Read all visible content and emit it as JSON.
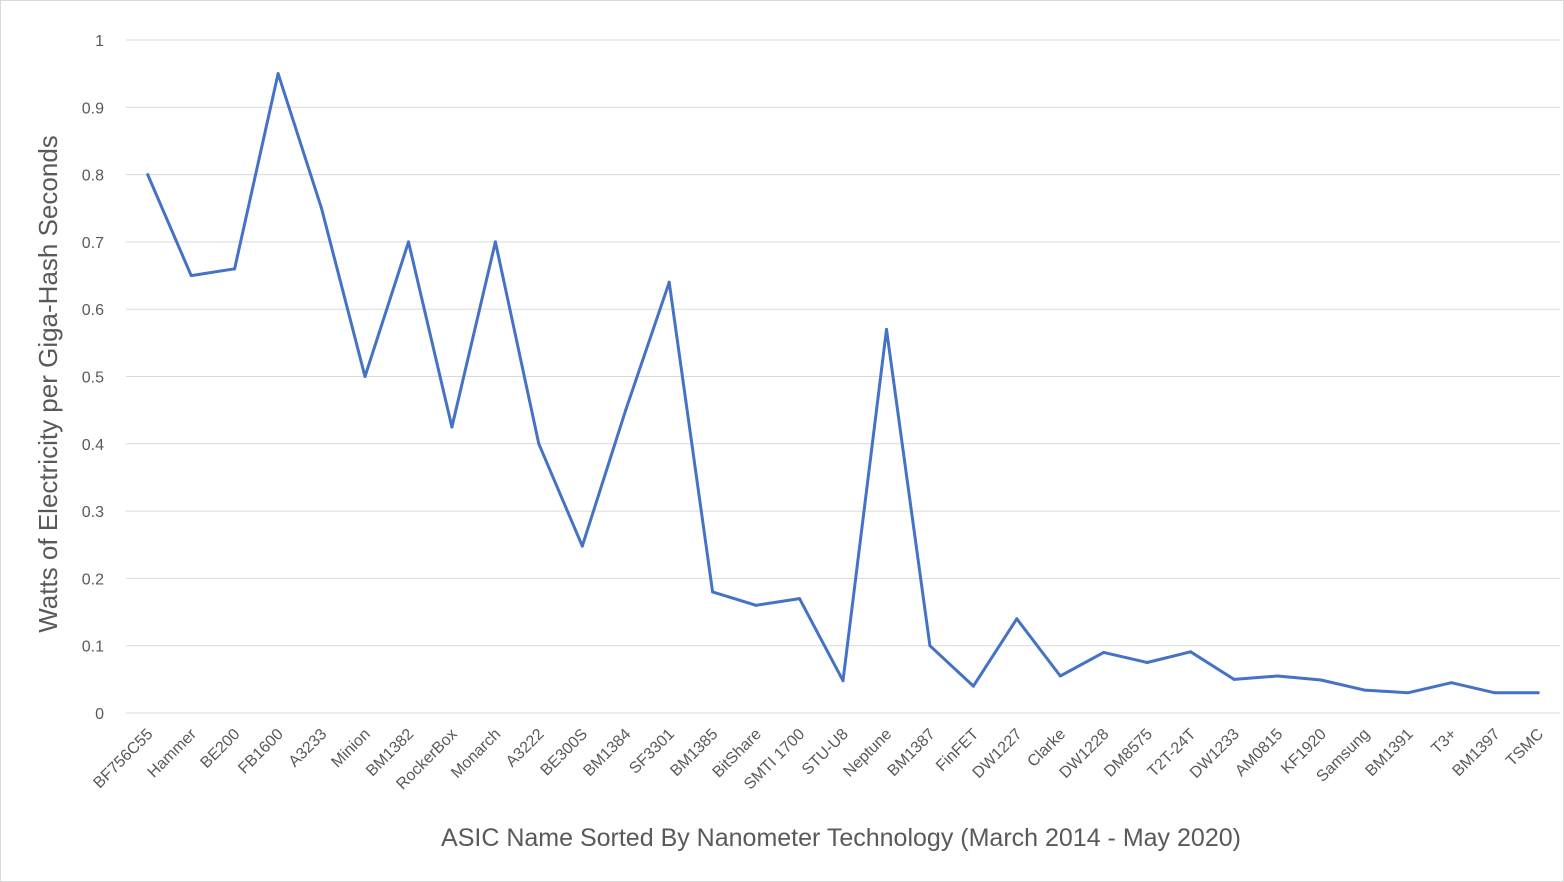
{
  "chart_data": {
    "type": "line",
    "title": "",
    "xlabel": "ASIC Name Sorted By Nanometer Technology (March 2014 - May 2020)",
    "ylabel": "Watts of Electricity per Giga-Hash Seconds",
    "ylim": [
      0,
      1
    ],
    "yticks": [
      "0",
      "0.1",
      "0.2",
      "0.3",
      "0.4",
      "0.5",
      "0.6",
      "0.7",
      "0.8",
      "0.9",
      "1"
    ],
    "grid": true,
    "legend": "none",
    "line_color": "#4472c4",
    "categories": [
      "BF756C55",
      "Hammer",
      "BE200",
      "FB1600",
      "A3233",
      "Minion",
      "BM1382",
      "RockerBox",
      "Monarch",
      "A3222",
      "BE300S",
      "BM1384",
      "SF3301",
      "BM1385",
      "BitShare",
      "SMTI 1700",
      "STU-U8",
      "Neptune",
      "BM1387",
      "FinFET",
      "DW1227",
      "Clarke",
      "DW1228",
      "DM8575",
      "T2T-24T",
      "DW1233",
      "AM0815",
      "KF1920",
      "Samsung",
      "BM1391",
      "T3+",
      "BM1397",
      "TSMC"
    ],
    "series": [
      {
        "values": [
          0.8,
          0.65,
          0.66,
          0.95,
          0.75,
          0.5,
          0.7,
          0.425,
          0.7,
          0.4,
          0.248,
          0.45,
          0.64,
          0.18,
          0.16,
          0.17,
          0.048,
          0.57,
          0.1,
          0.04,
          0.14,
          0.055,
          0.09,
          0.075,
          0.091,
          0.05,
          0.055,
          0.049,
          0.034,
          0.03,
          0.045,
          0.03,
          0.03
        ]
      }
    ]
  }
}
